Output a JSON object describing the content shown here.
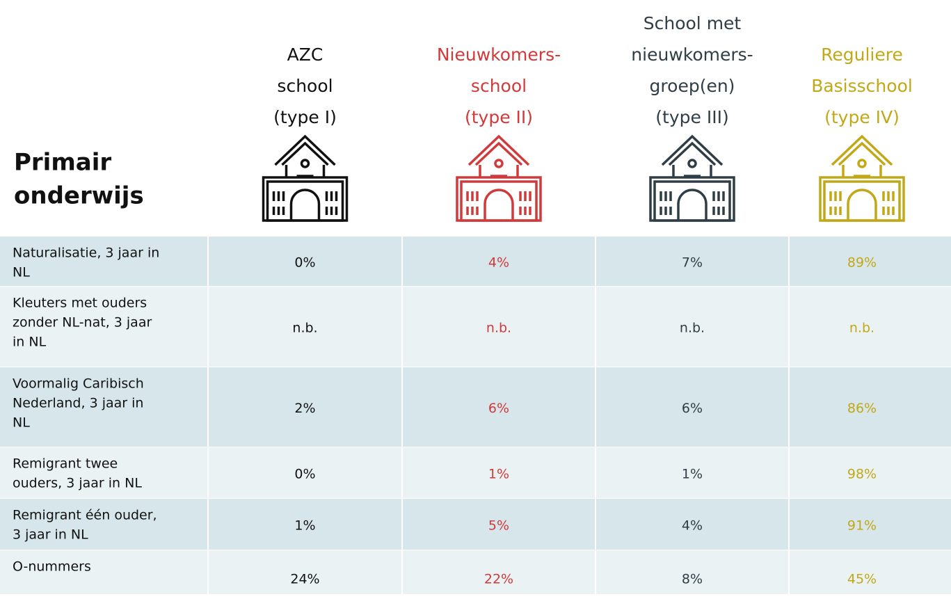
{
  "title": [
    "Primair",
    "onderwijs"
  ],
  "columns": [
    {
      "lines": [
        "AZC",
        "school",
        "(type I)"
      ],
      "color": "#111111"
    },
    {
      "lines": [
        "Nieuwkomers-",
        "school",
        "(type II)"
      ],
      "color": "#d03a3a"
    },
    {
      "lines": [
        "School met",
        "nieuwkomers-",
        "groep(en)",
        "(type III)"
      ],
      "color": "#2f3e46"
    },
    {
      "lines": [
        "Reguliere",
        "Basisschool",
        "(type IV)"
      ],
      "color": "#c2a817"
    }
  ],
  "rows": [
    {
      "label": [
        "Naturalisatie, 3 jaar in",
        "NL"
      ],
      "values": [
        "0%",
        "4%",
        "7%",
        "89%"
      ]
    },
    {
      "label": [
        "Kleuters met ouders",
        "zonder NL-nat, 3 jaar",
        "in NL"
      ],
      "values": [
        "n.b.",
        "n.b.",
        "n.b.",
        "n.b."
      ]
    },
    {
      "label": [
        "Voormalig Caribisch",
        "Nederland, 3 jaar in",
        "NL"
      ],
      "values": [
        "2%",
        "6%",
        "6%",
        "86%"
      ]
    },
    {
      "label": [
        "Remigrant twee",
        "ouders, 3 jaar in NL"
      ],
      "values": [
        "0%",
        "1%",
        "1%",
        "98%"
      ]
    },
    {
      "label": [
        "Remigrant één ouder,",
        "3 jaar in NL"
      ],
      "values": [
        "1%",
        "5%",
        "4%",
        "91%"
      ]
    },
    {
      "label": [
        "O-nummers"
      ],
      "values": [
        "24%",
        "22%",
        "8%",
        "45%"
      ]
    }
  ]
}
